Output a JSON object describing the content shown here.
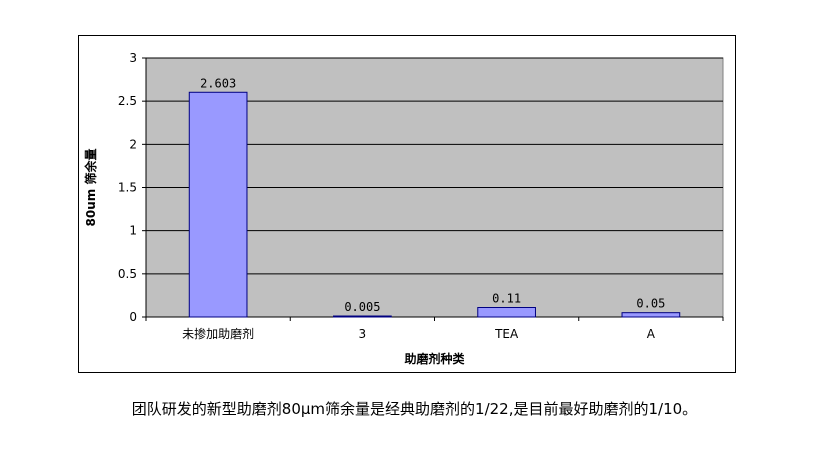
{
  "chart_data": {
    "type": "bar",
    "categories": [
      "未掺加助磨剂",
      "3",
      "TEA",
      "A"
    ],
    "values": [
      2.603,
      0.005,
      0.11,
      0.05
    ],
    "data_labels": [
      "2.603",
      "0.005",
      "0.11",
      "0.05"
    ],
    "title": "",
    "xlabel": "助磨剂种类",
    "ylabel": "80um 筛余量",
    "ylim": [
      0,
      3
    ],
    "yticks": [
      "0",
      "0.5",
      "1",
      "1.5",
      "2",
      "2.5",
      "3"
    ],
    "grid": true,
    "legend": "none",
    "colors": {
      "bar_fill": "#9999ff",
      "bar_stroke": "#000080",
      "plot_bg": "#c0c0c0",
      "grid": "#000000"
    }
  },
  "caption": "团队研发的新型助磨剂80μm筛余量是经典助磨剂的1/22,是目前最好助磨剂的1/10。"
}
